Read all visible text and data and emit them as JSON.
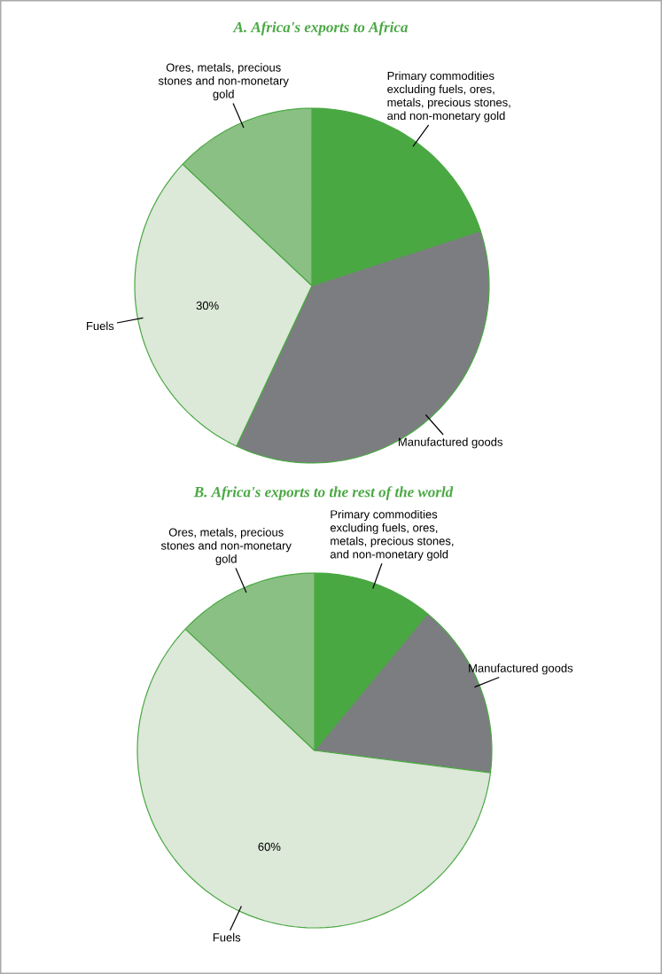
{
  "chart_data": [
    {
      "type": "pie",
      "title": "A. Africa's exports to Africa",
      "categories": [
        "Primary commodities excluding fuels, ores, metals, precious stones, and non-monetary gold",
        "Manufactured goods",
        "Fuels",
        "Ores, metals, precious stones and non-monetary gold"
      ],
      "values": [
        20,
        37,
        30,
        13
      ],
      "colors": [
        "#4aa843",
        "#7c7d80",
        "#dce8d8",
        "#8bc084"
      ],
      "value_labels": [
        null,
        null,
        "30%",
        null
      ]
    },
    {
      "type": "pie",
      "title": "B. Africa's exports to the rest of the world",
      "categories": [
        "Primary commodities excluding fuels, ores, metals, precious stones, and non-monetary gold",
        "Manufactured goods",
        "Fuels",
        "Ores, metals, precious stones and non-monetary gold"
      ],
      "values": [
        11,
        16,
        60,
        13
      ],
      "colors": [
        "#4aa843",
        "#7c7d80",
        "#dce8d8",
        "#8bc084"
      ],
      "value_labels": [
        null,
        null,
        "60%",
        null
      ]
    }
  ]
}
